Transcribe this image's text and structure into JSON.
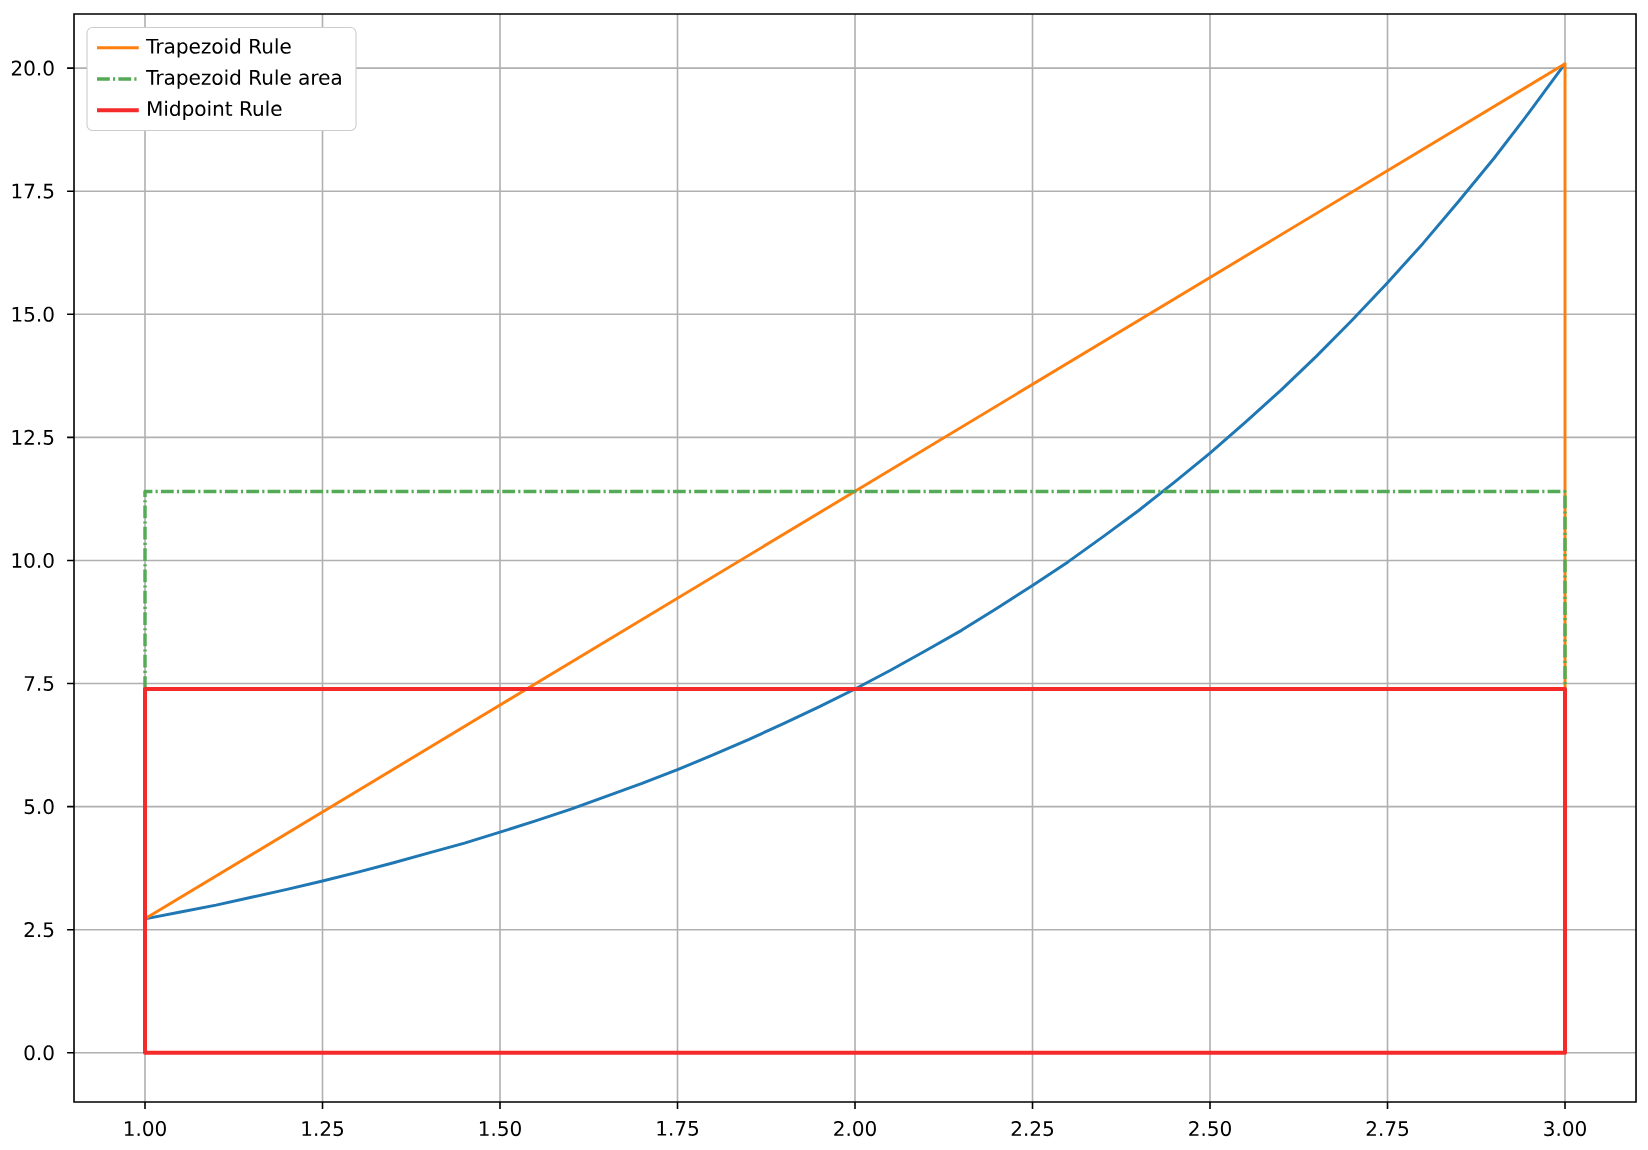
{
  "chart_data": {
    "type": "line",
    "xlim": [
      0.9,
      3.1
    ],
    "ylim": [
      -1.0,
      21.1
    ],
    "xticks": [
      {
        "value": 1.0,
        "label": "1.00"
      },
      {
        "value": 1.25,
        "label": "1.25"
      },
      {
        "value": 1.5,
        "label": "1.50"
      },
      {
        "value": 1.75,
        "label": "1.75"
      },
      {
        "value": 2.0,
        "label": "2.00"
      },
      {
        "value": 2.25,
        "label": "2.25"
      },
      {
        "value": 2.5,
        "label": "2.50"
      },
      {
        "value": 2.75,
        "label": "2.75"
      },
      {
        "value": 3.0,
        "label": "3.00"
      }
    ],
    "yticks": [
      {
        "value": 0,
        "label": "0.0"
      },
      {
        "value": 2.5,
        "label": "2.5"
      },
      {
        "value": 5,
        "label": "5.0"
      },
      {
        "value": 7.5,
        "label": "7.5"
      },
      {
        "value": 10,
        "label": "10.0"
      },
      {
        "value": 12.5,
        "label": "12.5"
      },
      {
        "value": 15,
        "label": "15.0"
      },
      {
        "value": 17.5,
        "label": "17.5"
      },
      {
        "value": 20,
        "label": "20.0"
      }
    ],
    "grid": true,
    "legend": "top left",
    "series": [
      {
        "color": "#1f77b4",
        "x": [
          1.0,
          1.05,
          1.1,
          1.15,
          1.2,
          1.25,
          1.3,
          1.35,
          1.4,
          1.45,
          1.5,
          1.55,
          1.6,
          1.65,
          1.7,
          1.75,
          1.8,
          1.85,
          1.9,
          1.95,
          2.0,
          2.05,
          2.1,
          2.15,
          2.2,
          2.25,
          2.3,
          2.35,
          2.4,
          2.45,
          2.5,
          2.55,
          2.6,
          2.65,
          2.7,
          2.75,
          2.8,
          2.85,
          2.9,
          2.95,
          3.0
        ],
        "values": [
          2.72,
          2.86,
          3.0,
          3.16,
          3.32,
          3.49,
          3.67,
          3.86,
          4.06,
          4.26,
          4.48,
          4.71,
          4.95,
          5.21,
          5.47,
          5.75,
          6.05,
          6.36,
          6.69,
          7.03,
          7.39,
          7.77,
          8.17,
          8.58,
          9.03,
          9.49,
          9.97,
          10.49,
          11.02,
          11.59,
          12.18,
          12.81,
          13.46,
          14.15,
          14.88,
          15.64,
          16.44,
          17.29,
          18.17,
          19.11,
          20.09
        ]
      },
      {
        "name": "Trapezoid Rule",
        "color": "#ff7f0e",
        "x": [
          1.0,
          3.0,
          3.0
        ],
        "values": [
          2.72,
          20.09,
          7.39
        ]
      },
      {
        "name": "Trapezoid Rule area",
        "color": "#55ab55",
        "line_style": "dashdot",
        "x": [
          1.0,
          1.0,
          3.0,
          3.0
        ],
        "values": [
          7.39,
          11.4,
          11.4,
          7.39
        ]
      },
      {
        "name": "Midpoint Rule",
        "color": "#f52a2a",
        "x": [
          1.0,
          1.0,
          3.0,
          3.0,
          1.0,
          1.0
        ],
        "values": [
          0,
          7.39,
          7.39,
          0,
          0,
          7.39
        ]
      }
    ]
  }
}
